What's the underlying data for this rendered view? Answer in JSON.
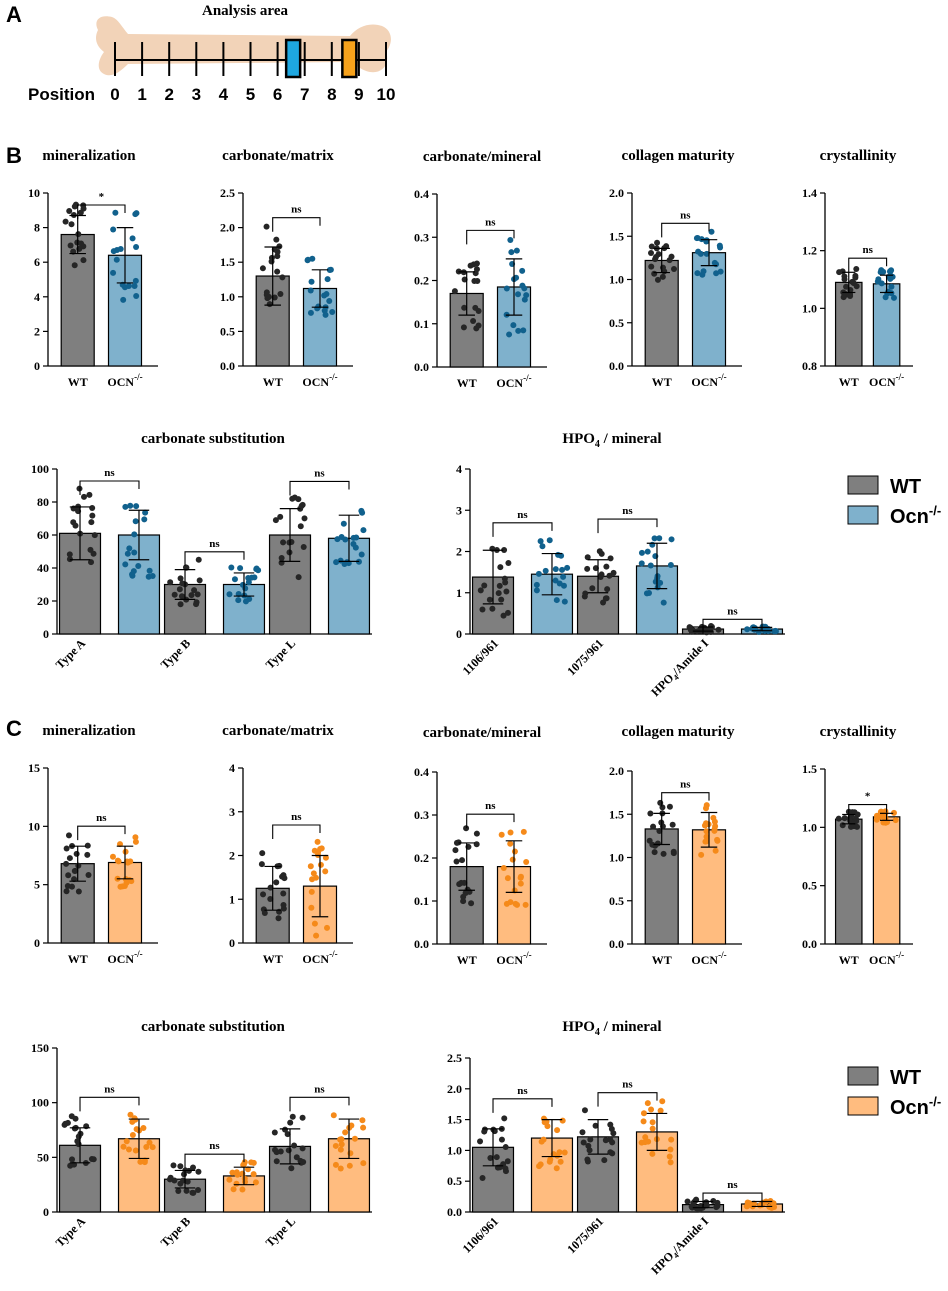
{
  "colors": {
    "wt": "#7f7f7f",
    "ko_b": "#7fb1cc",
    "ko_c": "#ffbc7f",
    "wt_dot": "#262626",
    "ko_dot_b": "#11618d",
    "ko_dot_c": "#f58a1a",
    "box_7": "#1ea7e0",
    "box_9": "#f7a21b",
    "bone": "#f2d3b8"
  },
  "panel_a": {
    "letter": "A",
    "title": "Analysis area",
    "position_label": "Position",
    "positions": [
      "0",
      "1",
      "2",
      "3",
      "4",
      "5",
      "6",
      "7",
      "8",
      "9",
      "10"
    ],
    "highlight_positions": [
      7,
      9
    ]
  },
  "panel_b": {
    "letter": "B"
  },
  "panel_c": {
    "letter": "C"
  },
  "legend_b": {
    "wt": "WT",
    "ko": "Ocn",
    "ko_sup": "-/-"
  },
  "legend_c": {
    "wt": "WT",
    "ko": "Ocn",
    "ko_sup": "-/-"
  },
  "chart_data": [
    {
      "id": "b_min",
      "type": "bar",
      "title": "mineralization",
      "categories": [
        "WT"
      ],
      "group_label_ko": "OCN",
      "ko_sup": "-/-",
      "ylim": [
        0,
        10
      ],
      "yticks": [
        "0",
        "2",
        "4",
        "6",
        "8",
        "10"
      ],
      "values": [
        [
          7.6,
          6.4
        ]
      ],
      "errors": [
        [
          1.1,
          1.6
        ]
      ],
      "sig": [
        "*"
      ],
      "scheme": "b"
    },
    {
      "id": "b_cm",
      "type": "bar",
      "title": "carbonate/matrix",
      "categories": [
        "WT"
      ],
      "group_label_ko": "OCN",
      "ko_sup": "-/-",
      "ylim": [
        0,
        2.5
      ],
      "yticks": [
        "0.0",
        "0.5",
        "1.0",
        "1.5",
        "2.0",
        "2.5"
      ],
      "values": [
        [
          1.3,
          1.12
        ]
      ],
      "errors": [
        [
          0.42,
          0.27
        ]
      ],
      "sig": [
        "ns"
      ],
      "scheme": "b"
    },
    {
      "id": "b_cmin",
      "type": "bar",
      "title": "carbonate/mineral",
      "categories": [
        "WT"
      ],
      "group_label_ko": "OCN",
      "ko_sup": "-/-",
      "ylim": [
        0,
        0.4
      ],
      "yticks": [
        "0.0",
        "0.1",
        "0.2",
        "0.3",
        "0.4"
      ],
      "values": [
        [
          0.17,
          0.185
        ]
      ],
      "errors": [
        [
          0.05,
          0.065
        ]
      ],
      "sig": [
        "ns"
      ],
      "scheme": "b"
    },
    {
      "id": "b_col",
      "type": "bar",
      "title": "collagen maturity",
      "categories": [
        "WT"
      ],
      "group_label_ko": "OCN",
      "ko_sup": "-/-",
      "ylim": [
        0,
        2.0
      ],
      "yticks": [
        "0.0",
        "0.5",
        "1.0",
        "1.5",
        "2.0"
      ],
      "values": [
        [
          1.22,
          1.31
        ]
      ],
      "errors": [
        [
          0.14,
          0.15
        ]
      ],
      "sig": [
        "ns"
      ],
      "scheme": "b"
    },
    {
      "id": "b_cry",
      "type": "bar",
      "title": "crystallinity",
      "categories": [
        "WT"
      ],
      "group_label_ko": "OCN",
      "ko_sup": "-/-",
      "ylim": [
        0.8,
        1.4
      ],
      "yticks": [
        "0.8",
        "1.0",
        "1.2",
        "1.4"
      ],
      "values": [
        [
          1.09,
          1.085
        ]
      ],
      "errors": [
        [
          0.035,
          0.03
        ]
      ],
      "sig": [
        "ns"
      ],
      "scheme": "b"
    },
    {
      "id": "b_sub",
      "type": "bar",
      "title": "carbonate substitution",
      "categories": [
        "Type A",
        "Type B",
        "Type L"
      ],
      "ylim": [
        0,
        100
      ],
      "yticks": [
        "0",
        "20",
        "40",
        "60",
        "80",
        "100"
      ],
      "values": [
        [
          61,
          60
        ],
        [
          30,
          30
        ],
        [
          60,
          58
        ]
      ],
      "errors": [
        [
          16,
          15
        ],
        [
          9,
          7
        ],
        [
          16,
          14
        ]
      ],
      "sig": [
        "ns",
        "ns",
        "ns"
      ],
      "scheme": "b"
    },
    {
      "id": "b_hpo",
      "type": "bar",
      "title_main": "HPO",
      "title_sub": "4",
      "title_rest": " / mineral",
      "categories": [
        "1106/961",
        "1075/961",
        "HPO4/Amide I"
      ],
      "category_labels": [
        {
          "main": "1106/961"
        },
        {
          "main": "1075/961"
        },
        {
          "main": "HPO",
          "sub": "4",
          "rest": "/Amide I"
        }
      ],
      "ylim": [
        0,
        4
      ],
      "yticks": [
        "0",
        "1",
        "2",
        "3",
        "4"
      ],
      "values": [
        [
          1.38,
          1.45
        ],
        [
          1.4,
          1.65
        ],
        [
          0.12,
          0.12
        ]
      ],
      "errors": [
        [
          0.65,
          0.5
        ],
        [
          0.4,
          0.55
        ],
        [
          0.05,
          0.04
        ]
      ],
      "sig": [
        "ns",
        "ns",
        "ns"
      ],
      "scheme": "b"
    },
    {
      "id": "c_min",
      "type": "bar",
      "title": "mineralization",
      "categories": [
        "WT"
      ],
      "group_label_ko": "OCN",
      "ko_sup": "-/-",
      "ylim": [
        0,
        15
      ],
      "yticks": [
        "0",
        "5",
        "10",
        "15"
      ],
      "values": [
        [
          6.8,
          6.9
        ]
      ],
      "errors": [
        [
          1.5,
          1.4
        ]
      ],
      "sig": [
        "ns"
      ],
      "scheme": "c"
    },
    {
      "id": "c_cm",
      "type": "bar",
      "title": "carbonate/matrix",
      "categories": [
        "WT"
      ],
      "group_label_ko": "OCN",
      "ko_sup": "-/-",
      "ylim": [
        0,
        4
      ],
      "yticks": [
        "0",
        "1",
        "2",
        "3",
        "4"
      ],
      "values": [
        [
          1.25,
          1.3
        ]
      ],
      "errors": [
        [
          0.5,
          0.7
        ]
      ],
      "sig": [
        "ns"
      ],
      "scheme": "c"
    },
    {
      "id": "c_cmin",
      "type": "bar",
      "title": "carbonate/mineral",
      "categories": [
        "WT"
      ],
      "group_label_ko": "OCN",
      "ko_sup": "-/-",
      "ylim": [
        0,
        0.4
      ],
      "yticks": [
        "0.0",
        "0.1",
        "0.2",
        "0.3",
        "0.4"
      ],
      "values": [
        [
          0.18,
          0.18
        ]
      ],
      "errors": [
        [
          0.055,
          0.06
        ]
      ],
      "sig": [
        "ns"
      ],
      "scheme": "c"
    },
    {
      "id": "c_col",
      "type": "bar",
      "title": "collagen maturity",
      "categories": [
        "WT"
      ],
      "group_label_ko": "OCN",
      "ko_sup": "-/-",
      "ylim": [
        0,
        2.0
      ],
      "yticks": [
        "0.0",
        "0.5",
        "1.0",
        "1.5",
        "2.0"
      ],
      "values": [
        [
          1.33,
          1.32
        ]
      ],
      "errors": [
        [
          0.18,
          0.2
        ]
      ],
      "sig": [
        "ns"
      ],
      "scheme": "c"
    },
    {
      "id": "c_cry",
      "type": "bar",
      "title": "crystallinity",
      "categories": [
        "WT"
      ],
      "group_label_ko": "OCN",
      "ko_sup": "-/-",
      "ylim": [
        0,
        1.5
      ],
      "yticks": [
        "0.0",
        "0.5",
        "1.0",
        "1.5"
      ],
      "values": [
        [
          1.07,
          1.09
        ]
      ],
      "errors": [
        [
          0.04,
          0.03
        ]
      ],
      "sig": [
        "*"
      ],
      "scheme": "c"
    },
    {
      "id": "c_sub",
      "type": "bar",
      "title": "carbonate substitution",
      "categories": [
        "Type A",
        "Type B",
        "Type L"
      ],
      "ylim": [
        0,
        150
      ],
      "yticks": [
        "0",
        "50",
        "100",
        "150"
      ],
      "values": [
        [
          61,
          67
        ],
        [
          30,
          33
        ],
        [
          60,
          67
        ]
      ],
      "errors": [
        [
          16,
          18
        ],
        [
          8,
          8
        ],
        [
          16,
          18
        ]
      ],
      "sig": [
        "ns",
        "ns",
        "ns"
      ],
      "scheme": "c"
    },
    {
      "id": "c_hpo",
      "type": "bar",
      "title_main": "HPO",
      "title_sub": "4",
      "title_rest": " / mineral",
      "categories": [
        "1106/961",
        "1075/961",
        "HPO4/Amide I"
      ],
      "category_labels": [
        {
          "main": "1106/961"
        },
        {
          "main": "1075/961"
        },
        {
          "main": "HPO",
          "sub": "4",
          "rest": "/Amide I"
        }
      ],
      "ylim": [
        0,
        2.5
      ],
      "yticks": [
        "0.0",
        "0.5",
        "1.0",
        "1.5",
        "2.0",
        "2.5"
      ],
      "values": [
        [
          1.05,
          1.2
        ],
        [
          1.22,
          1.3
        ],
        [
          0.12,
          0.13
        ]
      ],
      "errors": [
        [
          0.3,
          0.3
        ],
        [
          0.28,
          0.3
        ],
        [
          0.05,
          0.04
        ]
      ],
      "sig": [
        "ns",
        "ns",
        "ns"
      ],
      "scheme": "c"
    }
  ]
}
